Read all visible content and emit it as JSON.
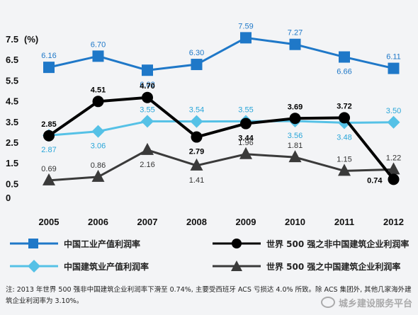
{
  "chart_data": {
    "type": "line",
    "title": "",
    "xlabel": "",
    "ylabel": "",
    "y_unit_label": "(%)",
    "categories": [
      "2005",
      "2006",
      "2007",
      "2008",
      "2009",
      "2010",
      "2011",
      "2012"
    ],
    "y_ticks": [
      "7.5",
      "6.5",
      "5.5",
      "4.5",
      "3.5",
      "2.5",
      "1.5",
      "0.5",
      "0"
    ],
    "ylim": [
      0,
      7.8
    ],
    "grid": false,
    "legend_position": "bottom",
    "series": [
      {
        "name": "中国工业产值利润率",
        "values": [
          6.16,
          6.7,
          6.02,
          6.3,
          7.59,
          7.27,
          6.66,
          6.11
        ],
        "labels": [
          "6.16",
          "6.70",
          "6.02",
          "6.30",
          "7.59",
          "7.27",
          "6.66",
          "6.11"
        ],
        "color": "#1f78c8",
        "label_color": "#1f78c8",
        "marker": "square"
      },
      {
        "name": "中国建筑业产值利润率",
        "values": [
          2.87,
          3.06,
          3.55,
          3.54,
          3.55,
          3.56,
          3.48,
          3.5
        ],
        "labels": [
          "2.87",
          "3.06",
          "3.55",
          "3.54",
          "3.55",
          "3.56",
          "3.48",
          "3.50"
        ],
        "color": "#55c1e6",
        "label_color": "#2aa6d9",
        "marker": "diamond"
      },
      {
        "name": "世界 500 强之非中国建筑企业利润率",
        "values": [
          2.85,
          4.51,
          4.7,
          2.79,
          3.44,
          3.69,
          3.72,
          0.74
        ],
        "labels": [
          "2.85",
          "4.51",
          "4.70",
          "2.79",
          "3.44",
          "3.69",
          "3.72",
          "0.74"
        ],
        "color": "#000000",
        "label_color": "#000000",
        "marker": "circle"
      },
      {
        "name": "世界 500 强之中国建筑企业利润率",
        "values": [
          0.69,
          0.86,
          2.16,
          1.41,
          1.96,
          1.81,
          1.15,
          1.22
        ],
        "labels": [
          "0.69",
          "0.86",
          "2.16",
          "1.41",
          "1.96",
          "1.81",
          "1.15",
          "1.22"
        ],
        "color": "#3a3a3a",
        "label_color": "#333333",
        "marker": "triangle"
      }
    ]
  },
  "note_text": "注: 2013 年世界 500 强非中国建筑企业利润率下滑至 0.74%, 主要受西班牙 ACS 亏损达 4.0% 所致。除 ACS 集团外, 其他几家海外建筑企业利润率为 3.10%。",
  "watermark_text": "城乡建设服务平台"
}
